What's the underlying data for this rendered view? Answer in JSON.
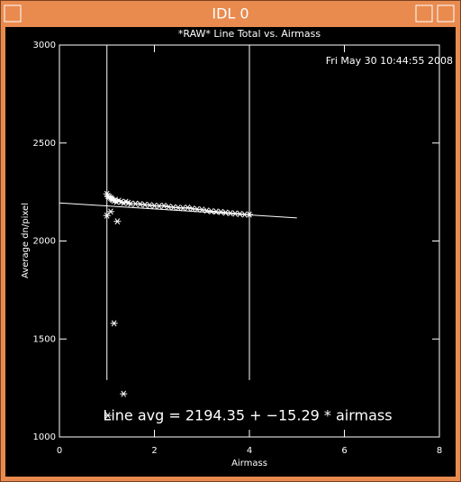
{
  "window": {
    "title": "IDL 0"
  },
  "chart_data": {
    "type": "scatter",
    "title": "*RAW* Line Total vs. Airmass",
    "date_stamp": "Fri May 30 10:44:55 2008",
    "x_label": "Airmass",
    "y_label": "Average dn/pixel",
    "annotation": "Line avg = 2194.35 + −15.29 * airmass",
    "xlim": [
      0,
      8
    ],
    "xticks": [
      0,
      2,
      4,
      6,
      8
    ],
    "ylim": [
      1000,
      3000
    ],
    "yticks": [
      1000,
      1500,
      2000,
      2500,
      3000
    ],
    "color": "#ffffff",
    "vlines": [
      1,
      4
    ],
    "vline_ymin": 1290,
    "fit": {
      "x": [
        0,
        5
      ],
      "y": [
        2194.35,
        2117.9
      ]
    },
    "x": [
      1.0,
      1.02,
      1.05,
      1.08,
      1.1,
      1.12,
      1.15,
      1.18,
      1.2,
      1.25,
      1.3,
      1.35,
      1.4,
      1.45,
      1.5,
      1.6,
      1.7,
      1.8,
      1.9,
      2.0,
      2.1,
      2.2,
      2.3,
      2.4,
      2.5,
      2.6,
      2.7,
      2.8,
      2.9,
      3.0,
      3.1,
      3.2,
      3.3,
      3.4,
      3.5,
      3.6,
      3.7,
      3.8,
      3.9,
      4.0,
      1.0,
      1.08,
      1.22,
      1.15,
      1.35,
      1.02
    ],
    "values": [
      2240,
      2230,
      2225,
      2220,
      2215,
      2210,
      2205,
      2210,
      2200,
      2205,
      2200,
      2195,
      2200,
      2195,
      2190,
      2190,
      2188,
      2185,
      2183,
      2180,
      2178,
      2180,
      2175,
      2172,
      2170,
      2168,
      2170,
      2165,
      2162,
      2160,
      2155,
      2152,
      2150,
      2148,
      2145,
      2142,
      2140,
      2138,
      2135,
      2135,
      2130,
      2150,
      2100,
      1580,
      1220,
      1110
    ]
  }
}
